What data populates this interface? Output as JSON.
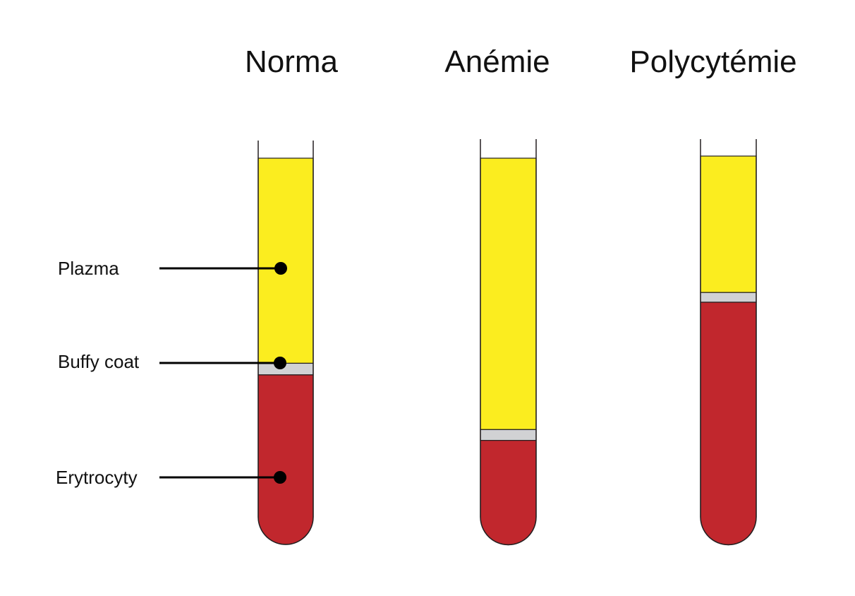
{
  "tubes": [
    {
      "title": "Norma",
      "plasma_fraction": 0.531,
      "buffy_fraction": 0.03,
      "rbc_fraction": 0.439
    },
    {
      "title": "Anémie",
      "plasma_fraction": 0.702,
      "buffy_fraction": 0.028,
      "rbc_fraction": 0.27
    },
    {
      "title": "Polycytémie",
      "plasma_fraction": 0.351,
      "buffy_fraction": 0.025,
      "rbc_fraction": 0.624
    }
  ],
  "labels": {
    "plasma": "Plazma",
    "buffy": "Buffy coat",
    "rbc": "Erytrocyty"
  },
  "colors": {
    "plasma": "#fbed1f",
    "buffy": "#d1d2d4",
    "rbc": "#c1272d",
    "outline": "#231f20",
    "pointer": "#000000"
  }
}
